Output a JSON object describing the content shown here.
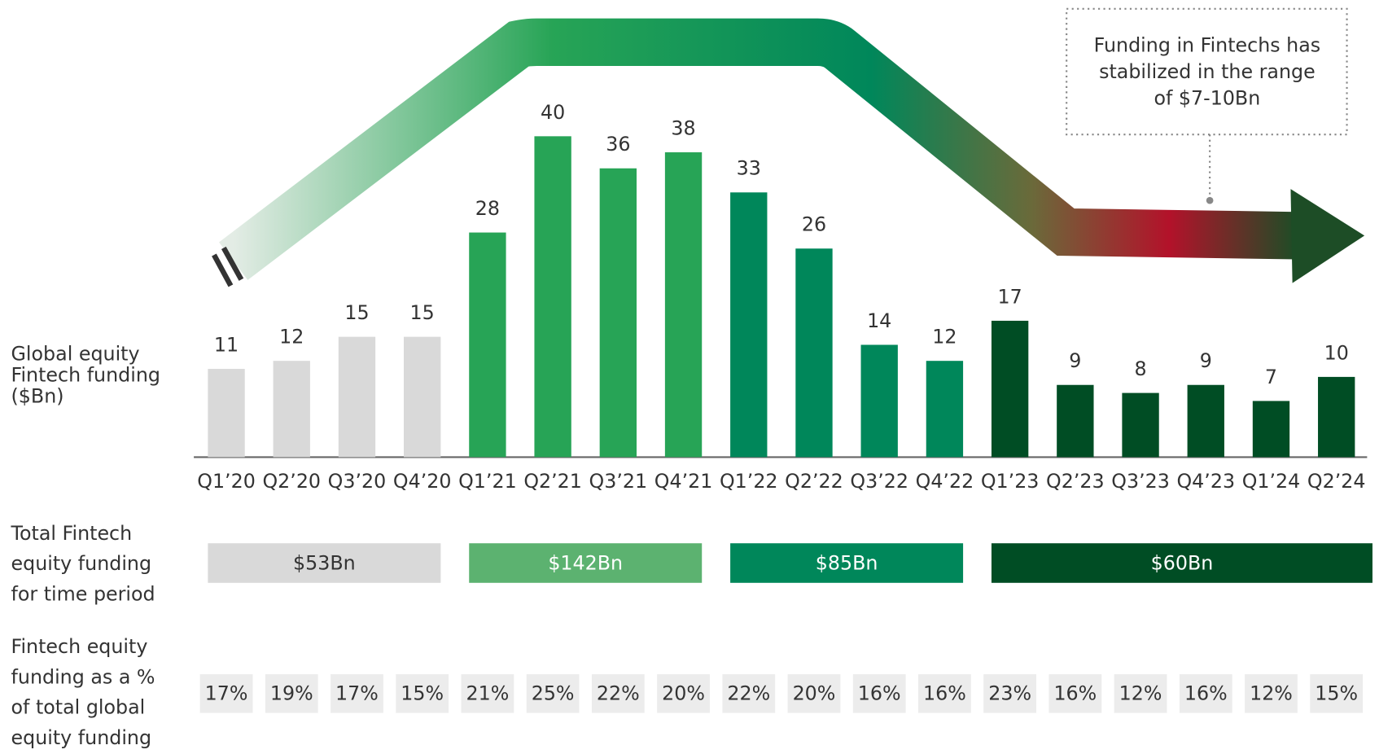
{
  "chart_data": {
    "type": "bar",
    "categories": [
      "Q1’20",
      "Q2’20",
      "Q3’20",
      "Q4’20",
      "Q1’21",
      "Q2’21",
      "Q3’21",
      "Q4’21",
      "Q1’22",
      "Q2’22",
      "Q3’22",
      "Q4’22",
      "Q1’23",
      "Q2’23",
      "Q3’23",
      "Q4’23",
      "Q1’24",
      "Q2’24"
    ],
    "values": [
      11,
      12,
      15,
      15,
      28,
      40,
      36,
      38,
      33,
      26,
      14,
      12,
      17,
      9,
      8,
      9,
      7,
      10
    ],
    "colors": [
      "#d9d9d9",
      "#d9d9d9",
      "#d9d9d9",
      "#d9d9d9",
      "#27a456",
      "#27a456",
      "#27a456",
      "#27a456",
      "#00875a",
      "#00875a",
      "#00875a",
      "#00875a",
      "#004d24",
      "#004d24",
      "#004d24",
      "#004d24",
      "#004d24",
      "#004d24"
    ],
    "y_label": [
      "Global equity",
      "Fintech funding",
      "($Bn)"
    ],
    "annotation": [
      "Funding in Fintechs has",
      "stabilized in the range",
      "of $7-10Bn"
    ],
    "period_label": [
      "Total Fintech",
      "equity funding",
      "for time period"
    ],
    "period_values": [
      53,
      142,
      85,
      60
    ],
    "period_value_labels": [
      "$53Bn",
      "$142Bn",
      "$85Bn",
      "$60Bn"
    ],
    "period_colors": [
      "#d9d9d9",
      "#5cb270",
      "#00875a",
      "#004d24"
    ],
    "share_label": [
      "Fintech equity",
      "funding as a %",
      "of total global",
      "equity funding"
    ],
    "share_values": [
      17,
      19,
      17,
      15,
      21,
      25,
      22,
      20,
      22,
      20,
      16,
      16,
      23,
      16,
      12,
      16,
      12,
      15
    ],
    "share_value_labels": [
      "17%",
      "19%",
      "17%",
      "15%",
      "21%",
      "25%",
      "22%",
      "20%",
      "22%",
      "20%",
      "16%",
      "16%",
      "23%",
      "16%",
      "12%",
      "16%",
      "12%",
      "15%"
    ]
  }
}
